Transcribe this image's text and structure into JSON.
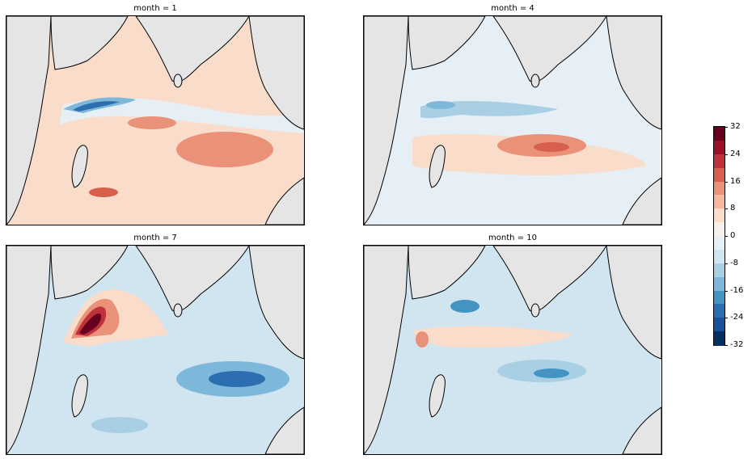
{
  "panels": [
    {
      "title": "month = 1"
    },
    {
      "title": "month = 4"
    },
    {
      "title": "month = 7"
    },
    {
      "title": "month = 10"
    }
  ],
  "colorbar": {
    "ticks": [
      "32",
      "24",
      "16",
      "8",
      "0",
      "-8",
      "-16",
      "-24",
      "-32"
    ],
    "colors": [
      "#67001f",
      "#9d0e29",
      "#c0323b",
      "#d6604d",
      "#ea9179",
      "#f6b89d",
      "#fadccb",
      "#f7efeb",
      "#e6eff5",
      "#d1e5f0",
      "#a8cfe4",
      "#7db8da",
      "#4393c3",
      "#2b6fb0",
      "#18509a",
      "#053061"
    ]
  },
  "colors": {
    "land": "#e5e5e5",
    "coast": "#000000"
  }
}
